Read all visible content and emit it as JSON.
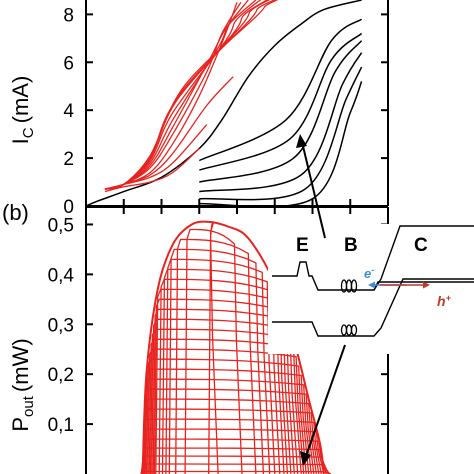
{
  "panel_b_label": "(b)",
  "band_diagram": {
    "labels": {
      "emitter": "E",
      "base": "B",
      "collector": "C"
    },
    "electron": {
      "symbol": "e",
      "sup": "-"
    },
    "hole": {
      "symbol": "h",
      "sup": "+"
    },
    "electron_color": "#3a8fd9",
    "hole_color": "#c0392b"
  },
  "colors": {
    "red_curves": "#e8231f",
    "black_curves": "#000000",
    "axes": "#000000"
  },
  "chart_data": [
    {
      "type": "line",
      "panel": "top",
      "ylabel": {
        "main": "I",
        "sub": "C",
        "unit": "(mA)"
      },
      "xlabel": "",
      "ylim": [
        0,
        8.6
      ],
      "xlim": [
        0,
        8
      ],
      "yticks": [
        0,
        2,
        4,
        6,
        8
      ],
      "xticks": [
        0,
        1,
        2,
        3,
        4,
        5,
        6,
        7,
        8
      ],
      "grid": false,
      "series": [
        {
          "color": "red",
          "x": [
            0.5,
            1.0,
            1.7,
            2.3,
            3.0
          ],
          "y": [
            0.6,
            0.8,
            1.0,
            1.4,
            2.4
          ]
        },
        {
          "color": "red",
          "x": [
            0.5,
            1.0,
            1.7,
            2.3,
            3.2
          ],
          "y": [
            0.7,
            0.9,
            1.2,
            1.8,
            3.4
          ]
        },
        {
          "color": "red",
          "x": [
            0.5,
            1.0,
            1.7,
            2.3,
            3.2,
            3.9
          ],
          "y": [
            0.7,
            0.9,
            1.3,
            2.2,
            4.2,
            5.4
          ]
        },
        {
          "color": "red",
          "x": [
            0.5,
            1.0,
            1.7,
            2.3,
            3.0,
            3.6,
            4.0
          ],
          "y": [
            0.7,
            0.9,
            1.4,
            2.6,
            4.6,
            6.8,
            8.5
          ]
        },
        {
          "color": "red",
          "x": [
            0.5,
            1.0,
            1.7,
            2.3,
            3.2,
            3.6,
            4.1
          ],
          "y": [
            0.7,
            0.9,
            1.6,
            3.0,
            5.6,
            7.2,
            8.5
          ]
        },
        {
          "color": "red",
          "x": [
            0.5,
            1.0,
            1.7,
            2.3,
            3.3,
            3.7,
            4.3
          ],
          "y": [
            0.7,
            0.9,
            1.7,
            3.3,
            6.2,
            7.4,
            8.6
          ]
        },
        {
          "color": "red",
          "x": [
            0.5,
            1.0,
            1.7,
            2.3,
            3.5,
            3.8,
            4.5
          ],
          "y": [
            0.7,
            0.9,
            1.8,
            3.6,
            6.6,
            7.6,
            8.6
          ]
        },
        {
          "color": "red",
          "x": [
            0.5,
            1.0,
            1.7,
            2.3,
            3.7,
            4.0,
            4.7
          ],
          "y": [
            0.7,
            0.9,
            1.9,
            3.9,
            6.9,
            7.8,
            8.7
          ]
        },
        {
          "color": "red",
          "x": [
            0.5,
            1.0,
            1.7,
            2.3,
            3.9,
            4.2,
            4.9
          ],
          "y": [
            0.7,
            0.9,
            2.0,
            4.2,
            7.2,
            8.0,
            8.7
          ]
        },
        {
          "color": "red",
          "x": [
            0.5,
            1.0,
            1.7,
            2.4,
            4.1,
            4.4,
            5.1
          ],
          "y": [
            0.7,
            0.9,
            2.0,
            4.4,
            7.5,
            8.2,
            8.8
          ]
        },
        {
          "color": "red",
          "x": [
            0.5,
            1.0,
            1.7,
            2.5,
            4.3,
            4.6,
            5.3
          ],
          "y": [
            0.7,
            0.9,
            2.1,
            4.7,
            7.7,
            8.3,
            8.8
          ]
        },
        {
          "color": "red",
          "x": [
            0.5,
            1.0,
            1.7,
            2.6,
            4.5,
            4.8,
            5.5
          ],
          "y": [
            0.7,
            0.9,
            2.1,
            5.0,
            7.9,
            8.4,
            8.9
          ]
        },
        {
          "color": "black",
          "x": [
            0.0,
            0.3,
            1.0,
            2.0,
            3.0,
            3.6,
            4.3,
            5.0,
            5.7,
            6.3,
            7.3
          ],
          "y": [
            0,
            0.2,
            0.6,
            1.2,
            2.4,
            3.6,
            5.4,
            6.7,
            7.6,
            8.2,
            8.6
          ]
        },
        {
          "color": "black",
          "x": [
            3.0,
            5.3,
            6.5,
            7.3
          ],
          "y": [
            1.9,
            3.6,
            6.9,
            7.8
          ]
        },
        {
          "color": "black",
          "x": [
            3.0,
            5.4,
            6.5,
            7.3
          ],
          "y": [
            1.5,
            2.8,
            6.1,
            7.2
          ]
        },
        {
          "color": "black",
          "x": [
            3.0,
            5.5,
            6.6,
            7.3
          ],
          "y": [
            1.0,
            2.0,
            5.6,
            6.9
          ]
        },
        {
          "color": "black",
          "x": [
            3.0,
            5.7,
            6.8,
            7.3
          ],
          "y": [
            0.6,
            1.3,
            5.1,
            6.4
          ]
        },
        {
          "color": "black",
          "x": [
            3.0,
            5.8,
            6.9,
            7.3
          ],
          "y": [
            0.3,
            0.7,
            4.5,
            5.8
          ]
        },
        {
          "color": "black",
          "x": [
            3.0,
            6.0,
            7.0,
            7.3
          ],
          "y": [
            0.1,
            0.3,
            3.9,
            5.2
          ]
        }
      ]
    },
    {
      "type": "line",
      "panel": "bottom",
      "ylabel": {
        "main": "P",
        "sub": "out",
        "unit": "(mW)"
      },
      "xlabel": "",
      "ylim": [
        0,
        0.535
      ],
      "xlim": [
        0,
        8
      ],
      "yticks": [
        0.1,
        0.2,
        0.3,
        0.4,
        0.5
      ],
      "ytick_labels": [
        "0,1",
        "0,2",
        "0,3",
        "0,4",
        "0,5"
      ],
      "xticks": [
        0,
        1,
        2,
        3,
        4,
        5,
        6,
        7,
        8
      ],
      "grid": false,
      "levels": [
        0.005,
        0.02,
        0.036,
        0.052,
        0.07,
        0.09,
        0.11,
        0.13,
        0.15,
        0.17,
        0.19,
        0.21,
        0.23,
        0.25,
        0.27,
        0.29,
        0.31,
        0.33,
        0.35,
        0.37,
        0.39,
        0.41,
        0.43,
        0.45,
        0.47,
        0.49,
        0.505
      ],
      "envelope": {
        "x": [
          1.5,
          1.6,
          1.9,
          2.3,
          2.8,
          3.3,
          3.8,
          4.2,
          4.6,
          5.0,
          5.5,
          5.9,
          6.2,
          6.3
        ],
        "y": [
          0.0,
          0.2,
          0.37,
          0.46,
          0.5,
          0.505,
          0.495,
          0.48,
          0.44,
          0.38,
          0.27,
          0.15,
          0.06,
          0.0
        ]
      }
    }
  ]
}
